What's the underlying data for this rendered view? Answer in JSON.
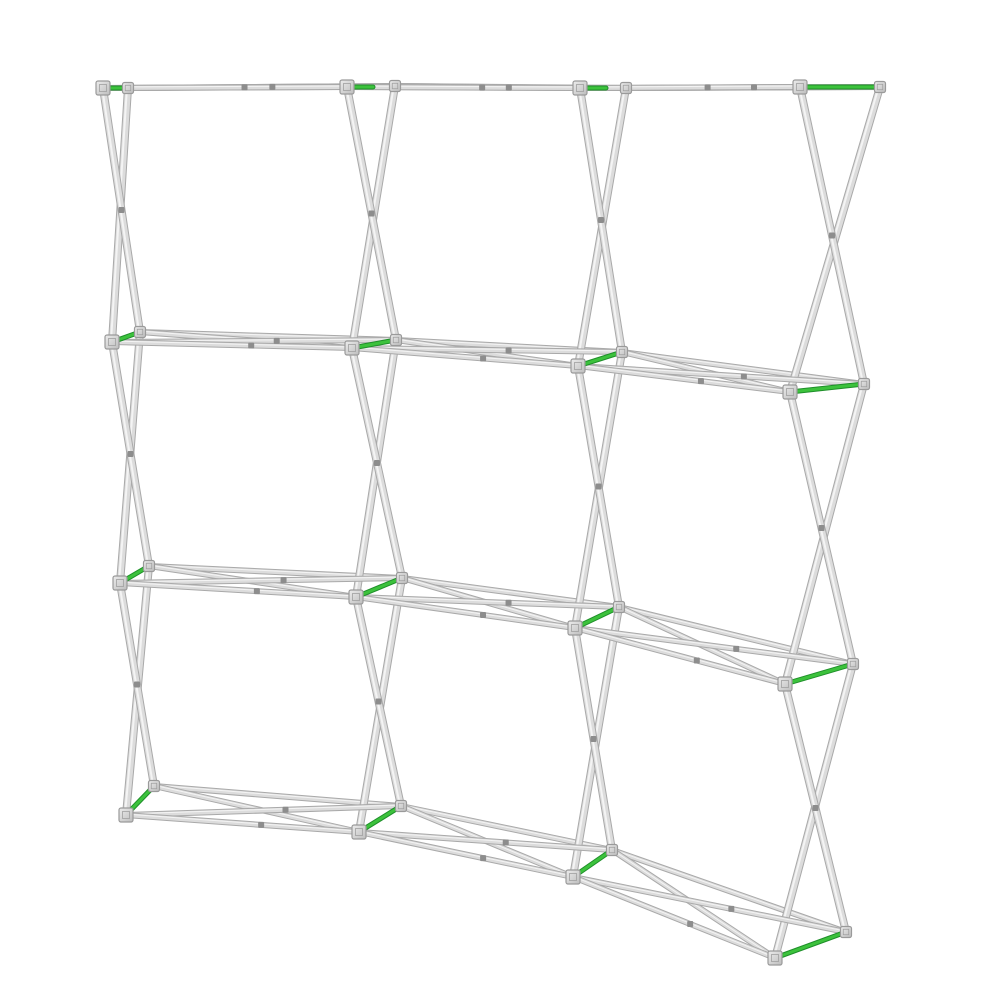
{
  "scene": {
    "subject": "pop-up-display-frame",
    "grid": {
      "columns": 3,
      "rows": 3
    },
    "colors": {
      "background": "#ffffff",
      "tube_light": "#f4f4f4",
      "tube_mid": "#dcdcdc",
      "tube_shadow": "#a9a9a9",
      "hub": "#cfcfcf",
      "hub_edge": "#9a9a9a",
      "connector_green": "#3cc23c",
      "connector_green_dark": "#1f8f2a"
    }
  }
}
